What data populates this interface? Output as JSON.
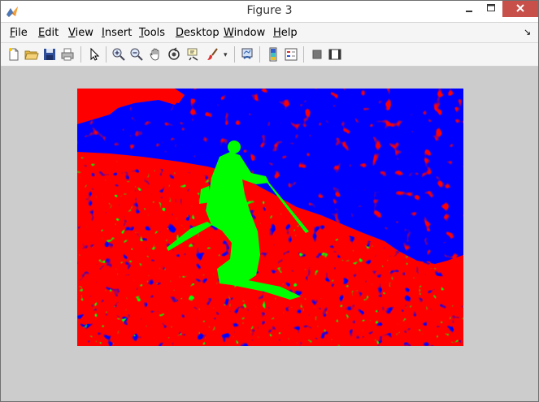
{
  "window": {
    "title": "Figure 3",
    "controls": [
      "minimize",
      "maximize",
      "close"
    ]
  },
  "menubar": {
    "items": [
      {
        "underline": "F",
        "rest": "ile"
      },
      {
        "underline": "E",
        "rest": "dit"
      },
      {
        "underline": "V",
        "rest": "iew"
      },
      {
        "underline": "I",
        "rest": "nsert"
      },
      {
        "underline": "T",
        "rest": "ools"
      },
      {
        "underline": "D",
        "rest": "esktop"
      },
      {
        "underline": "W",
        "rest": "indow"
      },
      {
        "underline": "H",
        "rest": "elp"
      }
    ],
    "dock_glyph": "↘"
  },
  "toolbar": {
    "icons": [
      "new-figure-icon",
      "open-file-icon",
      "save-figure-icon",
      "print-figure-icon",
      "edit-plot-icon",
      "zoom-in-icon",
      "zoom-out-icon",
      "pan-icon",
      "rotate-3d-icon",
      "data-cursor-icon",
      "brush-icon",
      "brush-dropdown-icon",
      "link-plot-icon",
      "insert-colorbar-icon",
      "insert-legend-icon",
      "hide-plot-tools-icon",
      "show-plot-tools-icon"
    ]
  },
  "figure": {
    "colors": {
      "red": "#ff0000",
      "green": "#00ff00",
      "blue": "#0000ff",
      "background": "#cccccc"
    }
  }
}
